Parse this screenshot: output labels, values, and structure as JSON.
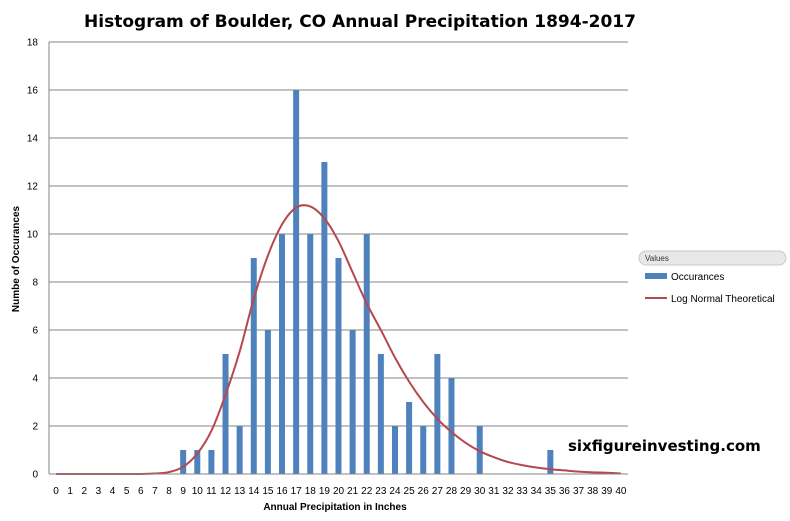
{
  "chart_data": {
    "type": "bar",
    "title": "Histogram of Boulder, CO Annual Precipitation 1894-2017",
    "xlabel": "Annual Precipitation in Inches",
    "ylabel": "Numbe of Occurances",
    "ylim": [
      0,
      18
    ],
    "yticks": [
      "0",
      "2",
      "4",
      "6",
      "8",
      "10",
      "12",
      "14",
      "16",
      "18"
    ],
    "categories": [
      "0",
      "1",
      "2",
      "3",
      "4",
      "5",
      "6",
      "7",
      "8",
      "9",
      "10",
      "11",
      "12",
      "13",
      "14",
      "15",
      "16",
      "17",
      "18",
      "19",
      "20",
      "21",
      "22",
      "23",
      "24",
      "25",
      "26",
      "27",
      "28",
      "29",
      "30",
      "31",
      "32",
      "33",
      "34",
      "35",
      "36",
      "37",
      "38",
      "39",
      "40"
    ],
    "grid": true,
    "legend_position": "right",
    "legend_header": "Values",
    "series": [
      {
        "name": "Occurances",
        "type": "bar",
        "color": "#4f81bd",
        "values": [
          0,
          0,
          0,
          0,
          0,
          0,
          0,
          0,
          0,
          1,
          1,
          1,
          5,
          2,
          9,
          6,
          10,
          16,
          10,
          13,
          9,
          6,
          10,
          5,
          2,
          3,
          2,
          5,
          4,
          0,
          2,
          0,
          0,
          0,
          0,
          1,
          0,
          0,
          0,
          0,
          0
        ]
      },
      {
        "name": "Log Normal Theoretical",
        "type": "line",
        "color": "#b5484c",
        "values": [
          0,
          0,
          0,
          0,
          0,
          0,
          0,
          0.02,
          0.08,
          0.3,
          0.85,
          1.8,
          3.3,
          5.1,
          7.3,
          9.1,
          10.4,
          11.1,
          11.15,
          10.65,
          9.7,
          8.4,
          7.1,
          6.0,
          4.85,
          3.85,
          3.0,
          2.3,
          1.75,
          1.3,
          0.95,
          0.7,
          0.5,
          0.37,
          0.27,
          0.2,
          0.15,
          0.1,
          0.07,
          0.05,
          0.02
        ]
      }
    ],
    "colors": {
      "bar": "#4f81bd",
      "line": "#b5484c",
      "grid": "#868686",
      "axis": "#868686"
    }
  },
  "watermark": "sixfigureinvesting.com"
}
